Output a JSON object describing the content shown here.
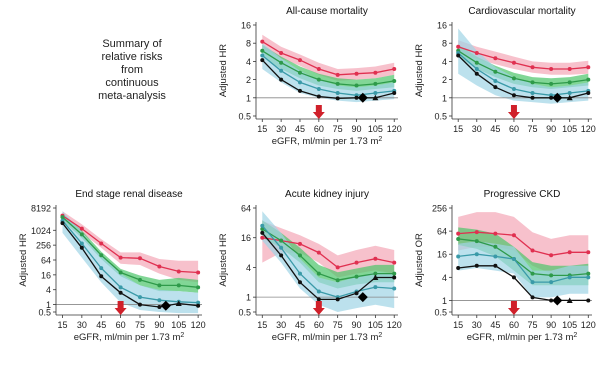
{
  "summary_text": [
    "Summary of",
    "relative risks",
    "from",
    "continuous",
    "meta-analysis"
  ],
  "shared": {
    "xlabel_prefix": "eGFR, ml/min per 1.73 m",
    "xlabel_sup": "2",
    "reference_marker_x": 60
  },
  "colors": {
    "red": "#e03050",
    "red_band": "#f4a6b6",
    "green": "#2e9a4a",
    "green_band": "#4cc46a",
    "teal": "#3a9aa8",
    "blue_band": "#9fd4e6",
    "black": "#111111",
    "arrow": "#d0202a"
  },
  "chart_data": [
    {
      "type": "line",
      "title": "All-cause mortality",
      "ylabel": "Adjusted HR",
      "xlabel": "eGFR, ml/min per 1.73 m2",
      "y_scale": "log",
      "yticks": [
        0.5,
        1,
        2,
        4,
        8,
        16
      ],
      "ytick_labels": [
        "0.5",
        "1",
        "2",
        "4",
        "8",
        "16"
      ],
      "xticks": [
        15,
        30,
        45,
        60,
        75,
        90,
        105,
        120
      ],
      "x": [
        15,
        30,
        45,
        60,
        75,
        90,
        105,
        120
      ],
      "show_xlabel": true,
      "series": [
        {
          "color": "red",
          "band": "red_band",
          "values": [
            8.5,
            5.5,
            4.2,
            3.0,
            2.4,
            2.5,
            2.6,
            3.0
          ],
          "band_low": [
            6.5,
            4.5,
            3.4,
            2.4,
            1.9,
            2.0,
            2.1,
            2.4
          ],
          "band_high": [
            11.0,
            7.0,
            5.2,
            3.8,
            3.0,
            3.1,
            3.3,
            3.8
          ]
        },
        {
          "color": "green",
          "band": "green_band",
          "values": [
            6.0,
            3.8,
            2.6,
            2.0,
            1.7,
            1.6,
            1.7,
            1.9
          ],
          "band_low": [
            4.8,
            3.0,
            2.1,
            1.6,
            1.4,
            1.3,
            1.4,
            1.5
          ],
          "band_high": [
            7.5,
            4.8,
            3.3,
            2.5,
            2.1,
            2.0,
            2.1,
            2.4
          ]
        },
        {
          "color": "teal",
          "band": "blue_band",
          "values": [
            5.0,
            2.8,
            1.8,
            1.4,
            1.2,
            1.1,
            1.2,
            1.3
          ],
          "band_low": [
            3.0,
            1.8,
            1.2,
            1.0,
            0.9,
            0.85,
            0.9,
            0.95
          ],
          "band_high": [
            8.0,
            4.5,
            2.8,
            2.0,
            1.6,
            1.5,
            1.6,
            1.8
          ]
        },
        {
          "color": "black",
          "band": null,
          "values": [
            4.2,
            2.0,
            1.3,
            1.05,
            0.98,
            1.0,
            1.0,
            1.2
          ]
        }
      ],
      "reference_point": {
        "x": 95,
        "y": 1.0
      }
    },
    {
      "type": "line",
      "title": "Cardiovascular mortality",
      "ylabel": "Adjusted HR",
      "xlabel": "eGFR, ml/min per 1.73 m2",
      "y_scale": "log",
      "yticks": [
        0.5,
        1,
        2,
        4,
        8,
        16
      ],
      "ytick_labels": [
        "0.5",
        "1",
        "2",
        "4",
        "8",
        "16"
      ],
      "xticks": [
        15,
        30,
        45,
        60,
        75,
        90,
        105,
        120
      ],
      "x": [
        15,
        30,
        45,
        60,
        75,
        90,
        105,
        120
      ],
      "show_xlabel": false,
      "series": [
        {
          "color": "red",
          "band": "red_band",
          "values": [
            7.0,
            5.5,
            4.5,
            3.8,
            3.2,
            3.0,
            3.0,
            3.2
          ],
          "band_low": [
            5.5,
            4.4,
            3.6,
            3.0,
            2.6,
            2.4,
            2.4,
            2.5
          ],
          "band_high": [
            9.0,
            7.0,
            5.8,
            4.8,
            4.0,
            3.8,
            3.8,
            4.1
          ]
        },
        {
          "color": "green",
          "band": "green_band",
          "values": [
            6.0,
            3.8,
            2.7,
            2.1,
            1.8,
            1.7,
            1.8,
            2.0
          ],
          "band_low": [
            4.8,
            3.0,
            2.2,
            1.7,
            1.5,
            1.4,
            1.5,
            1.6
          ],
          "band_high": [
            7.5,
            4.8,
            3.4,
            2.6,
            2.2,
            2.1,
            2.2,
            2.5
          ]
        },
        {
          "color": "teal",
          "band": "blue_band",
          "values": [
            5.5,
            3.0,
            1.9,
            1.4,
            1.2,
            1.1,
            1.2,
            1.3
          ],
          "band_low": [
            2.5,
            1.6,
            1.1,
            0.9,
            0.85,
            0.8,
            0.85,
            0.9
          ],
          "band_high": [
            14.0,
            6.0,
            3.2,
            2.2,
            1.7,
            1.5,
            1.6,
            1.8
          ]
        },
        {
          "color": "black",
          "band": null,
          "values": [
            5.0,
            2.5,
            1.5,
            1.1,
            1.0,
            1.0,
            1.0,
            1.2
          ]
        }
      ],
      "reference_point": {
        "x": 95,
        "y": 1.0
      }
    },
    {
      "type": "line",
      "title": "End stage renal disease",
      "ylabel": "Adjusted HR",
      "xlabel": "eGFR, ml/min per 1.73 m2",
      "y_scale": "log",
      "yticks": [
        0.5,
        1,
        4,
        16,
        64,
        256,
        1024,
        8192
      ],
      "ytick_labels": [
        "0.5",
        "1",
        "4",
        "16",
        "64",
        "256",
        "1024",
        "8192"
      ],
      "xticks": [
        15,
        30,
        45,
        60,
        75,
        90,
        105,
        120
      ],
      "x": [
        15,
        30,
        45,
        60,
        75,
        90,
        105,
        120
      ],
      "show_xlabel": true,
      "series": [
        {
          "color": "red",
          "band": "red_band",
          "values": [
            4000,
            1200,
            300,
            80,
            75,
            35,
            22,
            20
          ],
          "band_low": [
            2500,
            800,
            200,
            45,
            40,
            18,
            10,
            8
          ],
          "band_high": [
            6000,
            1800,
            450,
            130,
            130,
            70,
            60,
            60
          ]
        },
        {
          "color": "green",
          "band": "green_band",
          "values": [
            3500,
            700,
            100,
            20,
            10,
            6,
            6,
            5
          ],
          "band_low": [
            2500,
            500,
            70,
            14,
            6,
            3.5,
            3.5,
            3
          ],
          "band_high": [
            5000,
            1000,
            140,
            28,
            15,
            10,
            12,
            10
          ]
        },
        {
          "color": "teal",
          "band": "blue_band",
          "values": [
            2500,
            300,
            30,
            5,
            2,
            1.5,
            1.3,
            1.2
          ],
          "band_low": [
            800,
            80,
            8,
            1.2,
            0.6,
            0.5,
            0.45,
            0.45
          ],
          "band_high": [
            6000,
            900,
            100,
            18,
            6,
            4,
            3.5,
            3
          ]
        },
        {
          "color": "black",
          "band": null,
          "values": [
            2000,
            200,
            14,
            3,
            1,
            0.8,
            1.1,
            0.9
          ]
        }
      ],
      "reference_point": {
        "x": 95,
        "y": 0.9
      }
    },
    {
      "type": "line",
      "title": "Acute kidney injury",
      "ylabel": "Adjusted HR",
      "xlabel": "eGFR, ml/min per 1.73 m2",
      "y_scale": "log",
      "yticks": [
        0.5,
        1,
        4,
        16,
        64
      ],
      "ytick_labels": [
        "0.5",
        "1",
        "4",
        "16",
        "64"
      ],
      "xticks": [
        15,
        30,
        45,
        60,
        75,
        90,
        105,
        120
      ],
      "x": [
        15,
        30,
        45,
        60,
        75,
        90,
        105,
        120
      ],
      "show_xlabel": true,
      "series": [
        {
          "color": "red",
          "band": "red_band",
          "values": [
            16,
            14,
            12,
            8,
            4,
            5,
            6,
            5
          ],
          "band_low": [
            5,
            8,
            8,
            5,
            2.5,
            3,
            3.5,
            3
          ],
          "band_high": [
            35,
            25,
            18,
            12,
            7,
            9,
            11,
            9
          ]
        },
        {
          "color": "green",
          "band": "green_band",
          "values": [
            24,
            14,
            7,
            3,
            2.2,
            2.6,
            3,
            3
          ],
          "band_low": [
            16,
            10,
            5,
            2,
            1.5,
            1.8,
            2,
            2
          ],
          "band_high": [
            36,
            20,
            10,
            4.5,
            3.2,
            3.8,
            4.5,
            4.5
          ]
        },
        {
          "color": "teal",
          "band": "blue_band",
          "values": [
            28,
            10,
            3,
            1.3,
            1.0,
            1.3,
            1.6,
            1.5
          ],
          "band_low": [
            14,
            5,
            1.5,
            0.7,
            0.5,
            0.6,
            0.7,
            0.6
          ],
          "band_high": [
            55,
            20,
            6,
            2.5,
            2,
            2.6,
            3.2,
            3
          ]
        },
        {
          "color": "black",
          "band": null,
          "values": [
            20,
            7,
            2,
            0.9,
            0.9,
            1.2,
            2.5,
            2.5
          ]
        }
      ],
      "reference_point": {
        "x": 95,
        "y": 1.0
      }
    },
    {
      "type": "line",
      "title": "Progressive CKD",
      "ylabel": "Adjusted OR",
      "xlabel": "eGFR, ml/min per 1.73 m2",
      "y_scale": "log",
      "yticks": [
        0.5,
        1,
        4,
        16,
        64,
        256
      ],
      "ytick_labels": [
        "0.5",
        "1",
        "4",
        "16",
        "64",
        "256"
      ],
      "xticks": [
        15,
        30,
        45,
        60,
        75,
        90,
        105,
        120
      ],
      "x": [
        15,
        30,
        45,
        60,
        75,
        90,
        105,
        120
      ],
      "show_xlabel": true,
      "series": [
        {
          "color": "red",
          "band": "red_band",
          "values": [
            55,
            60,
            55,
            50,
            20,
            15,
            18,
            18
          ],
          "band_low": [
            20,
            25,
            25,
            20,
            8,
            5,
            5,
            4
          ],
          "band_high": [
            150,
            200,
            200,
            150,
            60,
            40,
            50,
            50
          ]
        },
        {
          "color": "green",
          "band": "green_band",
          "values": [
            40,
            35,
            25,
            12,
            5,
            4.5,
            4.5,
            5
          ],
          "band_low": [
            28,
            22,
            14,
            6,
            2.5,
            2.5,
            2.5,
            2.5
          ],
          "band_high": [
            80,
            70,
            55,
            25,
            10,
            8,
            8,
            9
          ]
        },
        {
          "color": "teal",
          "band": "blue_band",
          "values": [
            14,
            16,
            14,
            12,
            3,
            3,
            4,
            4
          ],
          "band_low": [
            6,
            7,
            6,
            5,
            1.2,
            1.2,
            1.5,
            1.5
          ],
          "band_high": [
            30,
            35,
            30,
            25,
            6,
            6,
            8,
            8
          ]
        },
        {
          "color": "black",
          "band": null,
          "values": [
            7,
            8,
            8,
            4,
            1.2,
            1,
            1,
            1
          ]
        }
      ],
      "reference_point": {
        "x": 95,
        "y": 1.0
      }
    }
  ]
}
